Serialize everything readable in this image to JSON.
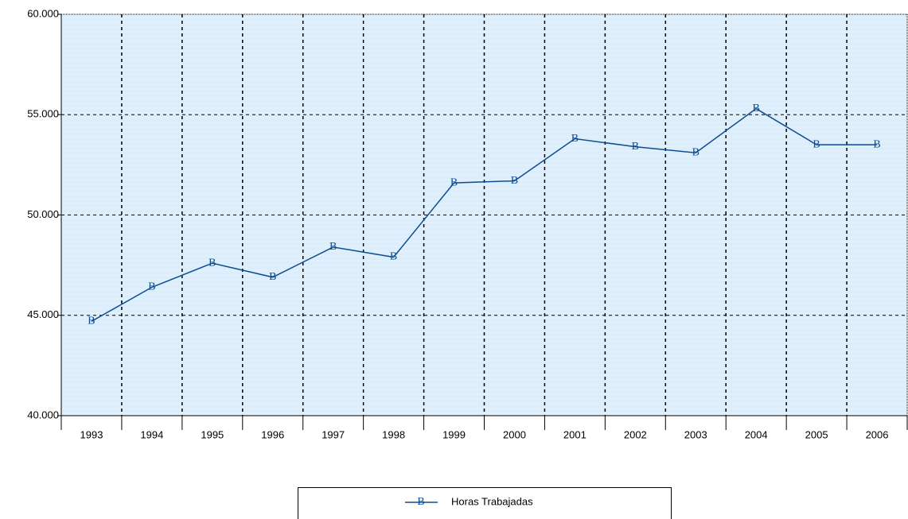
{
  "chart_data": {
    "type": "line",
    "categories": [
      "1993",
      "1994",
      "1995",
      "1996",
      "1997",
      "1998",
      "1999",
      "2000",
      "2001",
      "2002",
      "2003",
      "2004",
      "2005",
      "2006"
    ],
    "series": [
      {
        "name": "Horas Trabajadas",
        "color": "#0e4d92",
        "marker": "B",
        "values": [
          44700,
          46400,
          47600,
          46900,
          48400,
          47900,
          51600,
          51700,
          53800,
          53400,
          53100,
          55300,
          53500,
          53500
        ]
      }
    ],
    "ylim": [
      40000,
      60000
    ],
    "yticks": [
      {
        "value": 40000,
        "label": "40.000"
      },
      {
        "value": 45000,
        "label": "45.000"
      },
      {
        "value": 50000,
        "label": "50.000"
      },
      {
        "value": 55000,
        "label": "55.000"
      },
      {
        "value": 60000,
        "label": "60.000"
      }
    ],
    "grid": true,
    "legend": "bottom",
    "background": "#dcedfb"
  }
}
